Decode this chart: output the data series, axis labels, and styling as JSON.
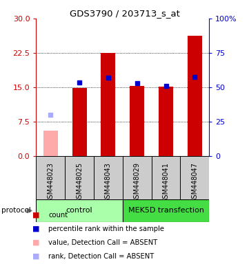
{
  "title": "GDS3790 / 203713_s_at",
  "samples": [
    "GSM448023",
    "GSM448025",
    "GSM448043",
    "GSM448029",
    "GSM448041",
    "GSM448047"
  ],
  "count_values": [
    null,
    14.8,
    22.5,
    15.2,
    15.1,
    26.3
  ],
  "count_absent_values": [
    5.5,
    null,
    null,
    null,
    null,
    null
  ],
  "percentile_values": [
    null,
    16.0,
    17.0,
    15.8,
    15.2,
    17.2
  ],
  "percentile_absent_values": [
    9.0,
    null,
    null,
    null,
    null,
    null
  ],
  "left_ylim": [
    0,
    30
  ],
  "right_ylim": [
    0,
    100
  ],
  "left_yticks": [
    0,
    7.5,
    15,
    22.5,
    30
  ],
  "right_yticks": [
    0,
    25,
    50,
    75,
    100
  ],
  "right_yticklabels": [
    "0",
    "25",
    "50",
    "75",
    "100%"
  ],
  "left_color": "#cc0000",
  "right_color": "#0000cc",
  "count_bar_color": "#cc0000",
  "count_absent_bar_color": "#ffaaaa",
  "percentile_marker_color": "#0000cc",
  "percentile_absent_marker_color": "#aaaaff",
  "control_color": "#aaffaa",
  "mek5d_color": "#44dd44",
  "background_color": "#ffffff",
  "x_section_bg": "#cccccc",
  "legend_items": [
    {
      "color": "#cc0000",
      "label": "count"
    },
    {
      "color": "#0000cc",
      "label": "percentile rank within the sample"
    },
    {
      "color": "#ffaaaa",
      "label": "value, Detection Call = ABSENT"
    },
    {
      "color": "#aaaaff",
      "label": "rank, Detection Call = ABSENT"
    }
  ]
}
